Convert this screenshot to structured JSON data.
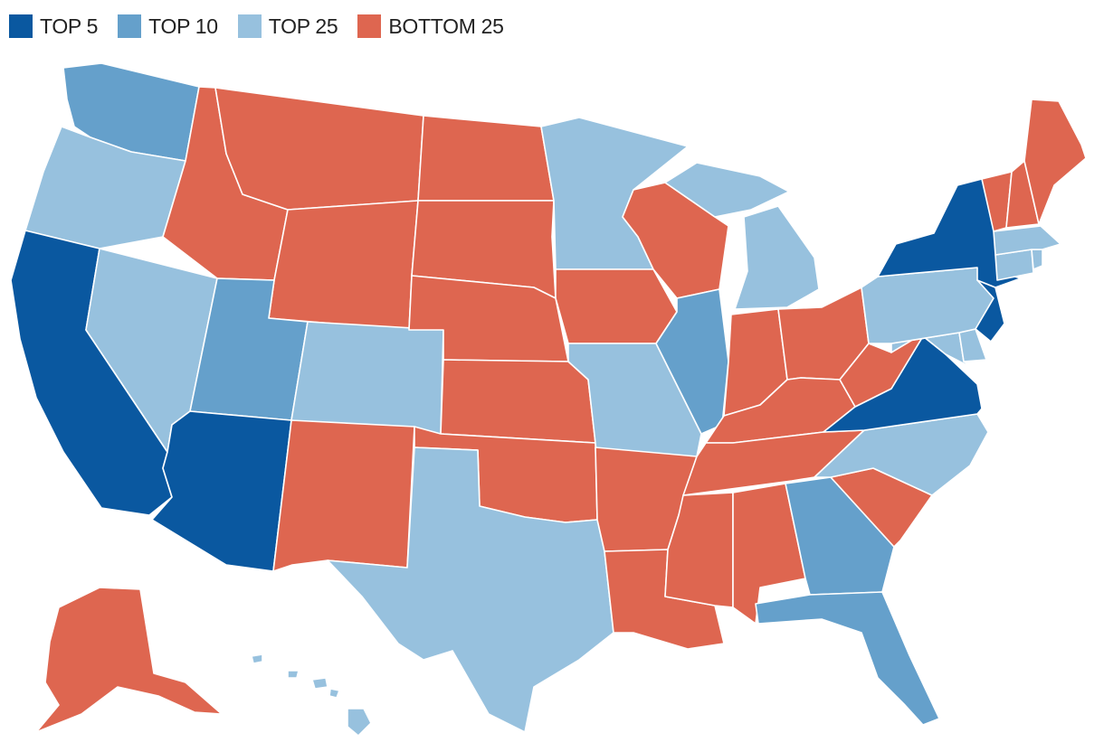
{
  "legend": {
    "items": [
      {
        "key": "top5",
        "label": "TOP 5",
        "color": "#0a58a0"
      },
      {
        "key": "top10",
        "label": "TOP 10",
        "color": "#65a0cb"
      },
      {
        "key": "top25",
        "label": "TOP 25",
        "color": "#97c1de"
      },
      {
        "key": "bottom25",
        "label": "BOTTOM 25",
        "color": "#de6650"
      }
    ]
  },
  "states": {
    "WA": "top10",
    "OR": "top25",
    "CA": "top5",
    "NV": "top25",
    "ID": "bottom25",
    "MT": "bottom25",
    "WY": "bottom25",
    "UT": "top10",
    "AZ": "top5",
    "CO": "top25",
    "NM": "bottom25",
    "ND": "bottom25",
    "SD": "bottom25",
    "NE": "bottom25",
    "KS": "bottom25",
    "OK": "bottom25",
    "TX": "top25",
    "MN": "top25",
    "IA": "bottom25",
    "MO": "top25",
    "AR": "bottom25",
    "LA": "bottom25",
    "WI": "bottom25",
    "IL": "top10",
    "MI": "top25",
    "IN": "bottom25",
    "OH": "bottom25",
    "KY": "bottom25",
    "TN": "bottom25",
    "MS": "bottom25",
    "AL": "bottom25",
    "GA": "top10",
    "FL": "top10",
    "SC": "bottom25",
    "NC": "top25",
    "VA": "top5",
    "WV": "bottom25",
    "MD": "top25",
    "DE": "top25",
    "PA": "top25",
    "NJ": "top5",
    "NY": "top5",
    "CT": "top25",
    "RI": "top25",
    "MA": "top25",
    "VT": "bottom25",
    "NH": "bottom25",
    "ME": "bottom25",
    "AK": "bottom25",
    "HI": "top25"
  }
}
